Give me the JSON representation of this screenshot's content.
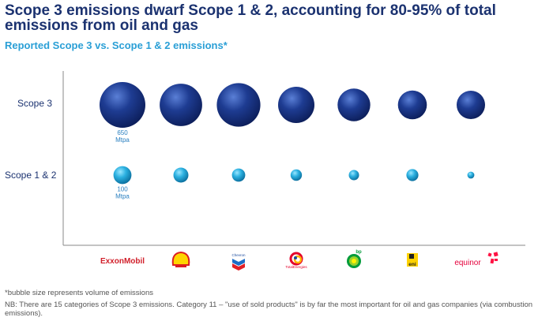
{
  "title": "Scope 3 emissions dwarf Scope 1 & 2, accounting for 80-95% of total emissions from oil and gas",
  "subtitle": "Reported Scope 3 vs. Scope 1 & 2 emissions*",
  "footnote": "*bubble size represents volume of emissions",
  "nb": "NB: There are 15 categories of Scope 3 emissions. Category 11 – \"use of sold products\" is by far the most important for oil and gas companies (via combustion emissions).",
  "colors": {
    "scope3": "#1a3a8c",
    "scope12": "#2bb0e0",
    "title": "#1b3270",
    "accent": "#2a9fd6"
  },
  "chart_data": {
    "type": "bubble",
    "categories": [
      "ExxonMobil",
      "Shell",
      "Chevron",
      "TotalEnergies",
      "bp",
      "eni",
      "equinor"
    ],
    "rows": [
      "Scope 3",
      "Scope 1 & 2"
    ],
    "series": [
      {
        "name": "Scope 3",
        "values": [
          650,
          560,
          590,
          410,
          330,
          260,
          250
        ]
      },
      {
        "name": "Scope 1 & 2",
        "values": [
          100,
          70,
          55,
          40,
          33,
          45,
          15
        ]
      }
    ],
    "annotations": [
      {
        "series": "Scope 3",
        "category": "ExxonMobil",
        "value": "650",
        "unit": "Mtpa"
      },
      {
        "series": "Scope 1 & 2",
        "category": "ExxonMobil",
        "value": "100",
        "unit": "Mtpa"
      }
    ],
    "logos": [
      {
        "name": "exxonmobil-logo",
        "text": "ExxonMobil"
      },
      {
        "name": "shell-logo",
        "text": ""
      },
      {
        "name": "chevron-logo",
        "text": "Chevron"
      },
      {
        "name": "totalenergies-logo",
        "text": "TotalEnergies"
      },
      {
        "name": "bp-logo",
        "text": "bp"
      },
      {
        "name": "eni-logo",
        "text": "eni"
      },
      {
        "name": "equinor-logo",
        "text": "equinor"
      }
    ]
  }
}
